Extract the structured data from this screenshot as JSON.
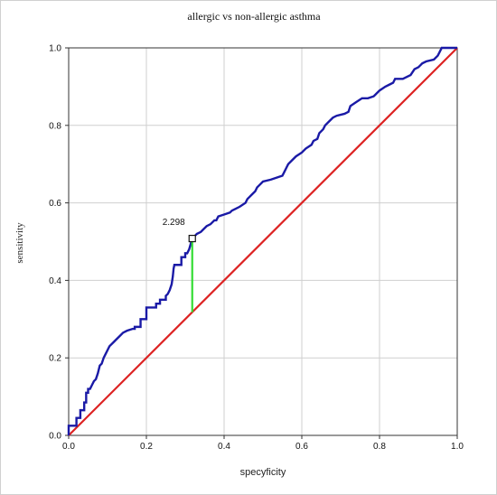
{
  "chart_data": {
    "type": "line",
    "title": "allergic vs non-allergic asthma",
    "xlabel": "specyficity",
    "ylabel": "sensitivity",
    "xlim": [
      0,
      1
    ],
    "ylim": [
      0,
      1
    ],
    "xticks": [
      "0.0",
      "0.2",
      "0.4",
      "0.6",
      "0.8",
      "1.0"
    ],
    "yticks": [
      "0.0",
      "0.2",
      "0.4",
      "0.6",
      "0.8",
      "1.0"
    ],
    "grid": true,
    "colors": {
      "roc": "#1a1aa6",
      "diagonal": "#dd2222",
      "cutoff": "#33dd33",
      "grid": "#cfcfcf"
    },
    "series": [
      {
        "values": [
          [
            0.0,
            0.0
          ],
          [
            0.0,
            0.025
          ],
          [
            0.01,
            0.025
          ],
          [
            0.02,
            0.025
          ],
          [
            0.02,
            0.045
          ],
          [
            0.03,
            0.045
          ],
          [
            0.03,
            0.065
          ],
          [
            0.04,
            0.065
          ],
          [
            0.04,
            0.085
          ],
          [
            0.045,
            0.085
          ],
          [
            0.045,
            0.11
          ],
          [
            0.05,
            0.11
          ],
          [
            0.05,
            0.12
          ],
          [
            0.055,
            0.12
          ],
          [
            0.06,
            0.13
          ],
          [
            0.065,
            0.14
          ],
          [
            0.07,
            0.145
          ],
          [
            0.075,
            0.16
          ],
          [
            0.08,
            0.18
          ],
          [
            0.085,
            0.185
          ],
          [
            0.09,
            0.2
          ],
          [
            0.095,
            0.21
          ],
          [
            0.1,
            0.22
          ],
          [
            0.105,
            0.23
          ],
          [
            0.11,
            0.235
          ],
          [
            0.12,
            0.245
          ],
          [
            0.13,
            0.255
          ],
          [
            0.14,
            0.265
          ],
          [
            0.15,
            0.27
          ],
          [
            0.165,
            0.275
          ],
          [
            0.17,
            0.275
          ],
          [
            0.17,
            0.28
          ],
          [
            0.18,
            0.28
          ],
          [
            0.185,
            0.28
          ],
          [
            0.185,
            0.3
          ],
          [
            0.2,
            0.3
          ],
          [
            0.2,
            0.33
          ],
          [
            0.225,
            0.33
          ],
          [
            0.225,
            0.34
          ],
          [
            0.235,
            0.34
          ],
          [
            0.235,
            0.35
          ],
          [
            0.25,
            0.35
          ],
          [
            0.25,
            0.36
          ],
          [
            0.255,
            0.365
          ],
          [
            0.26,
            0.375
          ],
          [
            0.265,
            0.39
          ],
          [
            0.268,
            0.41
          ],
          [
            0.27,
            0.43
          ],
          [
            0.272,
            0.44
          ],
          [
            0.29,
            0.44
          ],
          [
            0.29,
            0.46
          ],
          [
            0.3,
            0.46
          ],
          [
            0.3,
            0.47
          ],
          [
            0.305,
            0.47
          ],
          [
            0.31,
            0.48
          ],
          [
            0.318,
            0.508
          ],
          [
            0.325,
            0.515
          ],
          [
            0.33,
            0.52
          ],
          [
            0.34,
            0.525
          ],
          [
            0.345,
            0.53
          ],
          [
            0.35,
            0.535
          ],
          [
            0.355,
            0.54
          ],
          [
            0.365,
            0.545
          ],
          [
            0.375,
            0.555
          ],
          [
            0.38,
            0.555
          ],
          [
            0.385,
            0.565
          ],
          [
            0.4,
            0.57
          ],
          [
            0.415,
            0.575
          ],
          [
            0.42,
            0.58
          ],
          [
            0.43,
            0.585
          ],
          [
            0.44,
            0.59
          ],
          [
            0.455,
            0.6
          ],
          [
            0.46,
            0.61
          ],
          [
            0.465,
            0.615
          ],
          [
            0.47,
            0.62
          ],
          [
            0.48,
            0.63
          ],
          [
            0.485,
            0.64
          ],
          [
            0.49,
            0.645
          ],
          [
            0.5,
            0.655
          ],
          [
            0.52,
            0.66
          ],
          [
            0.55,
            0.67
          ],
          [
            0.555,
            0.68
          ],
          [
            0.56,
            0.69
          ],
          [
            0.565,
            0.7
          ],
          [
            0.575,
            0.71
          ],
          [
            0.585,
            0.72
          ],
          [
            0.6,
            0.73
          ],
          [
            0.61,
            0.74
          ],
          [
            0.625,
            0.75
          ],
          [
            0.63,
            0.76
          ],
          [
            0.64,
            0.765
          ],
          [
            0.645,
            0.78
          ],
          [
            0.655,
            0.79
          ],
          [
            0.66,
            0.8
          ],
          [
            0.67,
            0.81
          ],
          [
            0.68,
            0.82
          ],
          [
            0.69,
            0.825
          ],
          [
            0.71,
            0.83
          ],
          [
            0.72,
            0.835
          ],
          [
            0.725,
            0.85
          ],
          [
            0.74,
            0.86
          ],
          [
            0.755,
            0.87
          ],
          [
            0.77,
            0.87
          ],
          [
            0.785,
            0.875
          ],
          [
            0.79,
            0.88
          ],
          [
            0.8,
            0.89
          ],
          [
            0.815,
            0.9
          ],
          [
            0.825,
            0.905
          ],
          [
            0.835,
            0.91
          ],
          [
            0.84,
            0.92
          ],
          [
            0.86,
            0.92
          ],
          [
            0.87,
            0.925
          ],
          [
            0.88,
            0.93
          ],
          [
            0.89,
            0.945
          ],
          [
            0.9,
            0.95
          ],
          [
            0.905,
            0.955
          ],
          [
            0.91,
            0.96
          ],
          [
            0.92,
            0.965
          ],
          [
            0.94,
            0.97
          ],
          [
            0.95,
            0.98
          ],
          [
            0.955,
            0.99
          ],
          [
            0.96,
            1.0
          ],
          [
            1.0,
            1.0
          ]
        ]
      },
      {
        "values": [
          [
            0,
            0
          ],
          [
            1,
            1
          ]
        ]
      }
    ],
    "annotations": [
      {
        "text": "2.298",
        "x": 0.318,
        "y": 0.508,
        "segment_bottom": 0.318
      }
    ]
  }
}
